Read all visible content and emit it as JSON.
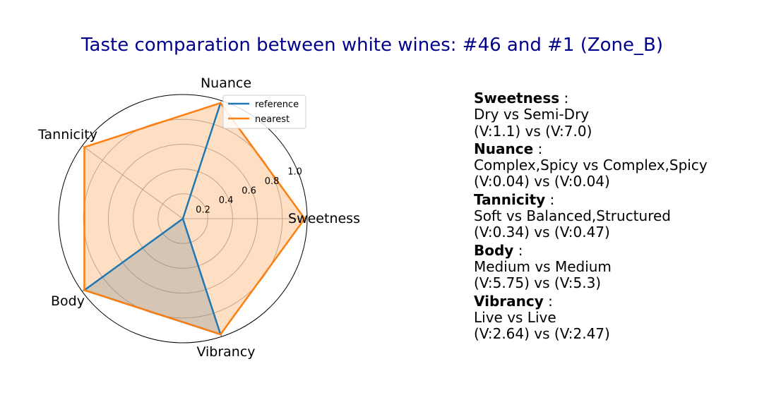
{
  "chart_data": {
    "type": "radar",
    "title": "Taste comparation between white wines: #46 and #1 (Zone_B)",
    "axes": [
      "Sweetness",
      "Nuance",
      "Tannicity",
      "Body",
      "Vibrancy"
    ],
    "rticks": [
      "0.2",
      "0.4",
      "0.6",
      "0.8",
      "1.0"
    ],
    "rtick_values": [
      0.2,
      0.4,
      0.6,
      0.8,
      1.0
    ],
    "rlim": [
      0,
      1.0
    ],
    "grid": true,
    "legend_position": "top-right",
    "series": [
      {
        "name": "reference",
        "color": "#1f77b4",
        "values": [
          0.0,
          0.98,
          0.0,
          0.98,
          0.98
        ],
        "fill": true,
        "fill_color": "#1f77b4"
      },
      {
        "name": "nearest",
        "color": "#ff7f0e",
        "values": [
          0.98,
          0.98,
          0.98,
          0.98,
          0.98
        ],
        "fill": true,
        "fill_color": "#ff7f0e"
      }
    ]
  },
  "details": [
    {
      "name": "Sweetness",
      "desc": "Dry vs Semi-Dry",
      "values": "(V:1.1) vs (V:7.0)"
    },
    {
      "name": "Nuance",
      "desc": "Complex,Spicy vs Complex,Spicy",
      "values": "(V:0.04) vs (V:0.04)"
    },
    {
      "name": "Tannicity",
      "desc": "Soft vs Balanced,Structured",
      "values": "(V:0.34) vs (V:0.47)"
    },
    {
      "name": "Body",
      "desc": "Medium vs Medium",
      "values": "(V:5.75) vs (V:5.3)"
    },
    {
      "name": "Vibrancy",
      "desc": "Live vs Live",
      "values": "(V:2.64) vs (V:2.47)"
    }
  ],
  "separator": " :"
}
